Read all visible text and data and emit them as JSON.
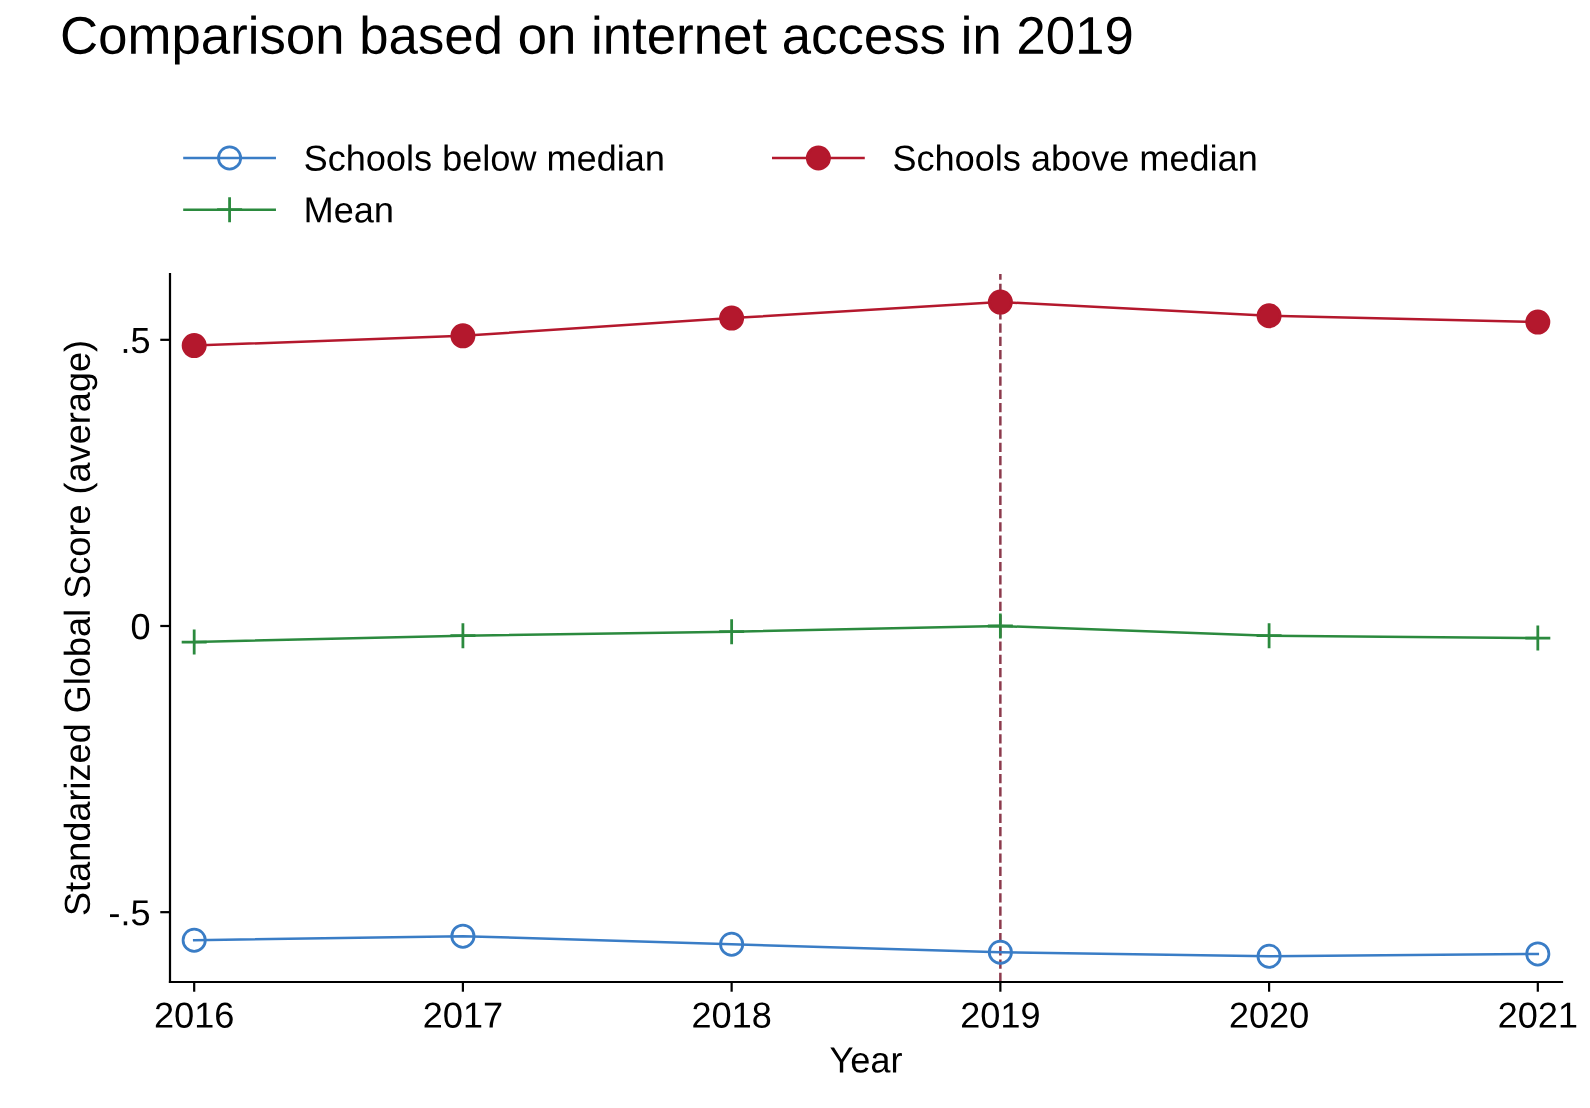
{
  "chart_data": {
    "type": "line",
    "title": "Comparison based on internet access in 2019",
    "xlabel": "Year",
    "ylabel": "Standarized Global Score (average)",
    "x": [
      2016,
      2017,
      2018,
      2019,
      2020,
      2021
    ],
    "series": [
      {
        "name": "Schools below median",
        "color": "#3a7dc6",
        "marker": "circle",
        "values": [
          -0.549,
          -0.542,
          -0.556,
          -0.57,
          -0.577,
          -0.573
        ]
      },
      {
        "name": "Schools above median",
        "color": "#b4182d",
        "marker": "circle",
        "values": [
          0.49,
          0.507,
          0.538,
          0.566,
          0.542,
          0.531
        ]
      },
      {
        "name": "Mean",
        "color": "#2b8a3e",
        "marker": "cross",
        "values": [
          -0.028,
          -0.017,
          -0.01,
          0.0,
          -0.017,
          -0.021
        ]
      }
    ],
    "xlim": [
      2015.91,
      2021.09
    ],
    "ylim": [
      -0.622,
      0.615
    ],
    "xticks": [
      2016,
      2017,
      2018,
      2019,
      2020,
      2021
    ],
    "yticks": [
      {
        "value": -0.5,
        "label": "-.5"
      },
      {
        "value": 0,
        "label": "0"
      },
      {
        "value": 0.5,
        "label": ".5"
      }
    ],
    "ref_lines": [
      {
        "axis": "x",
        "value": 2019,
        "color": "#8c3a4c",
        "line_style": "dashed"
      }
    ],
    "grid": false,
    "legend": "top left",
    "line_style": "solid"
  }
}
